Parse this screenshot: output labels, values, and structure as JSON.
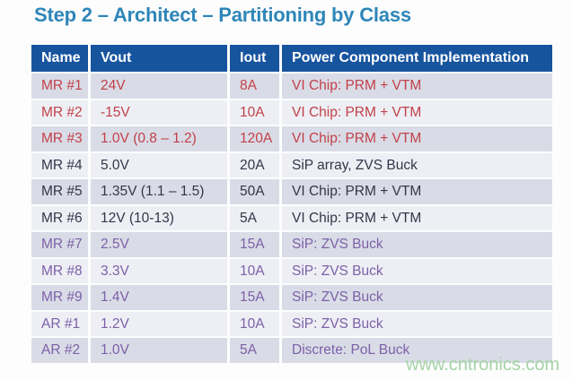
{
  "title": "Step 2 – Architect – Partitioning by Class",
  "watermark": "www.cntronics.com",
  "table": {
    "columns": {
      "name": "Name",
      "vout": "Vout",
      "iout": "Iout",
      "impl": "Power Component Implementation"
    },
    "rows": [
      {
        "name": "MR #1",
        "vout": "24V",
        "iout": "8A",
        "impl": "VI Chip: PRM + VTM"
      },
      {
        "name": "MR #2",
        "vout": "-15V",
        "iout": "10A",
        "impl": "VI Chip: PRM + VTM"
      },
      {
        "name": "MR #3",
        "vout": "1.0V (0.8 – 1.2)",
        "iout": "120A",
        "impl": "VI Chip: PRM + VTM"
      },
      {
        "name": "MR #4",
        "vout": "5.0V",
        "iout": "20A",
        "impl": "SiP array, ZVS Buck"
      },
      {
        "name": "MR #5",
        "vout": "1.35V (1.1 – 1.5)",
        "iout": "50A",
        "impl": "VI Chip: PRM + VTM"
      },
      {
        "name": "MR #6",
        "vout": "12V (10-13)",
        "iout": "5A",
        "impl": "VI Chip: PRM + VTM"
      },
      {
        "name": "MR #7",
        "vout": "2.5V",
        "iout": "15A",
        "impl": "SiP: ZVS Buck"
      },
      {
        "name": "MR #8",
        "vout": "3.3V",
        "iout": "10A",
        "impl": "SiP: ZVS Buck"
      },
      {
        "name": "MR #9",
        "vout": "1.4V",
        "iout": "15A",
        "impl": "SiP: ZVS Buck"
      },
      {
        "name": "AR #1",
        "vout": "1.2V",
        "iout": "10A",
        "impl": "SiP: ZVS Buck"
      },
      {
        "name": "AR #2",
        "vout": "1.0V",
        "iout": "5A",
        "impl": "Discrete: PoL Buck"
      }
    ]
  },
  "colors": {
    "title": "#2E86B8",
    "header_bg": "#17549E",
    "header_text": "#FFFFFF",
    "row_odd_bg": "#D9DCE6",
    "row_even_bg": "#EDEFF4",
    "text_red": "#C2404A",
    "text_dark": "#35354A",
    "text_purple": "#7D60A9",
    "watermark": "#A6D4A6"
  }
}
